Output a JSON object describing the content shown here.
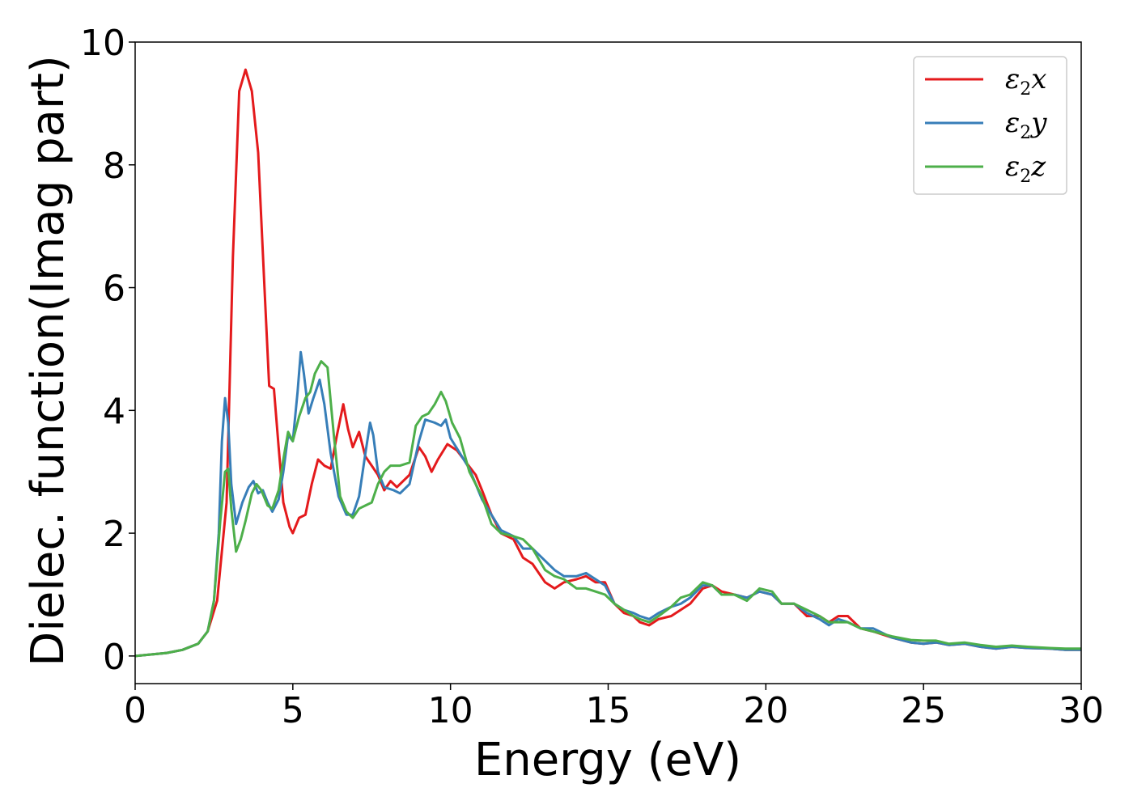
{
  "chart_data": {
    "type": "line",
    "xlabel": "Energy (eV)",
    "ylabel": "Dielec. function(Imag part)",
    "xlim": [
      0,
      30
    ],
    "ylim": [
      -0.45,
      10
    ],
    "xticks": [
      0,
      5,
      10,
      15,
      20,
      25,
      30
    ],
    "yticks": [
      0,
      2,
      4,
      6,
      8,
      10
    ],
    "grid": false,
    "legend_position": "top-right",
    "series": [
      {
        "name": "ε2x",
        "legend": {
          "symbol": "ε",
          "sub": "2",
          "axis": "x"
        },
        "color": "#e41a1c",
        "points": [
          [
            0,
            0
          ],
          [
            1,
            0.05
          ],
          [
            1.5,
            0.1
          ],
          [
            2,
            0.2
          ],
          [
            2.3,
            0.4
          ],
          [
            2.6,
            0.9
          ],
          [
            2.9,
            2.5
          ],
          [
            3.1,
            6.5
          ],
          [
            3.3,
            9.2
          ],
          [
            3.5,
            9.55
          ],
          [
            3.7,
            9.2
          ],
          [
            3.9,
            8.2
          ],
          [
            4.1,
            6.0
          ],
          [
            4.25,
            4.4
          ],
          [
            4.4,
            4.35
          ],
          [
            4.55,
            3.4
          ],
          [
            4.7,
            2.5
          ],
          [
            4.9,
            2.1
          ],
          [
            5.0,
            2.0
          ],
          [
            5.2,
            2.25
          ],
          [
            5.4,
            2.3
          ],
          [
            5.6,
            2.8
          ],
          [
            5.8,
            3.2
          ],
          [
            6.0,
            3.1
          ],
          [
            6.2,
            3.05
          ],
          [
            6.4,
            3.6
          ],
          [
            6.6,
            4.1
          ],
          [
            6.75,
            3.7
          ],
          [
            6.9,
            3.4
          ],
          [
            7.1,
            3.65
          ],
          [
            7.3,
            3.25
          ],
          [
            7.5,
            3.1
          ],
          [
            7.7,
            2.95
          ],
          [
            7.9,
            2.7
          ],
          [
            8.1,
            2.85
          ],
          [
            8.3,
            2.75
          ],
          [
            8.5,
            2.85
          ],
          [
            8.7,
            2.95
          ],
          [
            9.0,
            3.4
          ],
          [
            9.2,
            3.25
          ],
          [
            9.4,
            3.0
          ],
          [
            9.6,
            3.2
          ],
          [
            9.9,
            3.45
          ],
          [
            10.2,
            3.35
          ],
          [
            10.5,
            3.15
          ],
          [
            10.8,
            2.95
          ],
          [
            11.0,
            2.7
          ],
          [
            11.3,
            2.3
          ],
          [
            11.6,
            2.0
          ],
          [
            12.0,
            1.9
          ],
          [
            12.3,
            1.6
          ],
          [
            12.6,
            1.5
          ],
          [
            13.0,
            1.2
          ],
          [
            13.3,
            1.1
          ],
          [
            13.6,
            1.2
          ],
          [
            14.0,
            1.25
          ],
          [
            14.3,
            1.3
          ],
          [
            14.6,
            1.2
          ],
          [
            14.9,
            1.2
          ],
          [
            15.2,
            0.85
          ],
          [
            15.5,
            0.7
          ],
          [
            15.8,
            0.65
          ],
          [
            16.0,
            0.55
          ],
          [
            16.3,
            0.5
          ],
          [
            16.6,
            0.6
          ],
          [
            17.0,
            0.65
          ],
          [
            17.3,
            0.75
          ],
          [
            17.6,
            0.85
          ],
          [
            18.0,
            1.1
          ],
          [
            18.3,
            1.15
          ],
          [
            18.6,
            1.05
          ],
          [
            19.0,
            1.0
          ],
          [
            19.4,
            0.95
          ],
          [
            19.8,
            1.05
          ],
          [
            20.2,
            1.0
          ],
          [
            20.5,
            0.85
          ],
          [
            20.9,
            0.85
          ],
          [
            21.3,
            0.65
          ],
          [
            21.7,
            0.65
          ],
          [
            22.0,
            0.55
          ],
          [
            22.3,
            0.65
          ],
          [
            22.6,
            0.65
          ],
          [
            23.0,
            0.45
          ],
          [
            23.4,
            0.4
          ],
          [
            24.0,
            0.3
          ],
          [
            24.6,
            0.22
          ],
          [
            25.0,
            0.2
          ],
          [
            25.4,
            0.22
          ],
          [
            25.8,
            0.18
          ],
          [
            26.3,
            0.2
          ],
          [
            26.8,
            0.15
          ],
          [
            27.3,
            0.12
          ],
          [
            27.8,
            0.15
          ],
          [
            28.3,
            0.13
          ],
          [
            29.0,
            0.12
          ],
          [
            29.5,
            0.1
          ],
          [
            30.0,
            0.1
          ]
        ]
      },
      {
        "name": "ε2y",
        "legend": {
          "symbol": "ε",
          "sub": "2",
          "axis": "y"
        },
        "color": "#377eb8",
        "points": [
          [
            0,
            0
          ],
          [
            1,
            0.05
          ],
          [
            1.5,
            0.1
          ],
          [
            2,
            0.2
          ],
          [
            2.3,
            0.4
          ],
          [
            2.5,
            0.9
          ],
          [
            2.65,
            2.0
          ],
          [
            2.75,
            3.5
          ],
          [
            2.85,
            4.2
          ],
          [
            2.95,
            3.8
          ],
          [
            3.05,
            2.8
          ],
          [
            3.2,
            2.15
          ],
          [
            3.4,
            2.5
          ],
          [
            3.6,
            2.75
          ],
          [
            3.75,
            2.85
          ],
          [
            3.9,
            2.65
          ],
          [
            4.05,
            2.7
          ],
          [
            4.2,
            2.5
          ],
          [
            4.35,
            2.35
          ],
          [
            4.55,
            2.55
          ],
          [
            4.7,
            3.0
          ],
          [
            4.85,
            3.6
          ],
          [
            5.0,
            3.5
          ],
          [
            5.15,
            4.3
          ],
          [
            5.25,
            4.95
          ],
          [
            5.35,
            4.6
          ],
          [
            5.5,
            3.95
          ],
          [
            5.65,
            4.2
          ],
          [
            5.85,
            4.5
          ],
          [
            6.0,
            4.1
          ],
          [
            6.2,
            3.3
          ],
          [
            6.45,
            2.6
          ],
          [
            6.7,
            2.3
          ],
          [
            6.9,
            2.3
          ],
          [
            7.1,
            2.6
          ],
          [
            7.3,
            3.3
          ],
          [
            7.45,
            3.8
          ],
          [
            7.55,
            3.6
          ],
          [
            7.7,
            3.0
          ],
          [
            7.9,
            2.75
          ],
          [
            8.2,
            2.7
          ],
          [
            8.4,
            2.65
          ],
          [
            8.7,
            2.8
          ],
          [
            9.0,
            3.5
          ],
          [
            9.2,
            3.85
          ],
          [
            9.5,
            3.8
          ],
          [
            9.7,
            3.75
          ],
          [
            9.85,
            3.85
          ],
          [
            10.0,
            3.55
          ],
          [
            10.3,
            3.3
          ],
          [
            10.6,
            3.05
          ],
          [
            11.0,
            2.55
          ],
          [
            11.3,
            2.3
          ],
          [
            11.6,
            2.05
          ],
          [
            12.0,
            1.95
          ],
          [
            12.3,
            1.75
          ],
          [
            12.6,
            1.75
          ],
          [
            13.0,
            1.55
          ],
          [
            13.3,
            1.4
          ],
          [
            13.6,
            1.3
          ],
          [
            14.0,
            1.3
          ],
          [
            14.3,
            1.35
          ],
          [
            14.6,
            1.25
          ],
          [
            14.9,
            1.15
          ],
          [
            15.2,
            0.85
          ],
          [
            15.5,
            0.75
          ],
          [
            15.8,
            0.7
          ],
          [
            16.0,
            0.65
          ],
          [
            16.3,
            0.6
          ],
          [
            16.6,
            0.7
          ],
          [
            17.0,
            0.8
          ],
          [
            17.3,
            0.85
          ],
          [
            17.6,
            0.95
          ],
          [
            18.0,
            1.15
          ],
          [
            18.3,
            1.15
          ],
          [
            18.6,
            1.0
          ],
          [
            19.0,
            1.0
          ],
          [
            19.4,
            0.95
          ],
          [
            19.8,
            1.05
          ],
          [
            20.2,
            1.0
          ],
          [
            20.5,
            0.85
          ],
          [
            20.9,
            0.85
          ],
          [
            21.3,
            0.7
          ],
          [
            21.7,
            0.6
          ],
          [
            22.0,
            0.5
          ],
          [
            22.3,
            0.6
          ],
          [
            22.6,
            0.55
          ],
          [
            23.0,
            0.45
          ],
          [
            23.4,
            0.45
          ],
          [
            24.0,
            0.3
          ],
          [
            24.6,
            0.22
          ],
          [
            25.0,
            0.2
          ],
          [
            25.4,
            0.22
          ],
          [
            25.8,
            0.18
          ],
          [
            26.3,
            0.2
          ],
          [
            26.8,
            0.15
          ],
          [
            27.3,
            0.12
          ],
          [
            27.8,
            0.15
          ],
          [
            28.3,
            0.13
          ],
          [
            29.0,
            0.12
          ],
          [
            29.5,
            0.1
          ],
          [
            30.0,
            0.1
          ]
        ]
      },
      {
        "name": "ε2z",
        "legend": {
          "symbol": "ε",
          "sub": "2",
          "axis": "z"
        },
        "color": "#4daf4a",
        "points": [
          [
            0,
            0
          ],
          [
            1,
            0.05
          ],
          [
            1.5,
            0.1
          ],
          [
            2,
            0.2
          ],
          [
            2.3,
            0.4
          ],
          [
            2.5,
            0.9
          ],
          [
            2.7,
            2.2
          ],
          [
            2.85,
            3.0
          ],
          [
            2.95,
            3.05
          ],
          [
            3.05,
            2.4
          ],
          [
            3.2,
            1.7
          ],
          [
            3.35,
            1.9
          ],
          [
            3.5,
            2.2
          ],
          [
            3.7,
            2.65
          ],
          [
            3.85,
            2.8
          ],
          [
            4.0,
            2.7
          ],
          [
            4.2,
            2.45
          ],
          [
            4.35,
            2.4
          ],
          [
            4.55,
            2.7
          ],
          [
            4.7,
            3.2
          ],
          [
            4.85,
            3.65
          ],
          [
            5.0,
            3.5
          ],
          [
            5.2,
            3.9
          ],
          [
            5.4,
            4.2
          ],
          [
            5.55,
            4.3
          ],
          [
            5.7,
            4.6
          ],
          [
            5.9,
            4.8
          ],
          [
            6.1,
            4.7
          ],
          [
            6.3,
            3.6
          ],
          [
            6.5,
            2.6
          ],
          [
            6.7,
            2.35
          ],
          [
            6.9,
            2.25
          ],
          [
            7.1,
            2.4
          ],
          [
            7.3,
            2.45
          ],
          [
            7.5,
            2.5
          ],
          [
            7.7,
            2.8
          ],
          [
            7.9,
            3.0
          ],
          [
            8.1,
            3.1
          ],
          [
            8.4,
            3.1
          ],
          [
            8.7,
            3.15
          ],
          [
            8.9,
            3.75
          ],
          [
            9.1,
            3.9
          ],
          [
            9.3,
            3.95
          ],
          [
            9.5,
            4.1
          ],
          [
            9.7,
            4.3
          ],
          [
            9.85,
            4.15
          ],
          [
            10.05,
            3.8
          ],
          [
            10.3,
            3.55
          ],
          [
            10.6,
            3.0
          ],
          [
            11.0,
            2.6
          ],
          [
            11.3,
            2.15
          ],
          [
            11.6,
            2.0
          ],
          [
            12.0,
            1.95
          ],
          [
            12.3,
            1.9
          ],
          [
            12.6,
            1.75
          ],
          [
            13.0,
            1.4
          ],
          [
            13.3,
            1.3
          ],
          [
            13.6,
            1.25
          ],
          [
            14.0,
            1.1
          ],
          [
            14.3,
            1.1
          ],
          [
            14.6,
            1.05
          ],
          [
            14.9,
            1.0
          ],
          [
            15.2,
            0.85
          ],
          [
            15.5,
            0.75
          ],
          [
            15.8,
            0.65
          ],
          [
            16.0,
            0.6
          ],
          [
            16.3,
            0.55
          ],
          [
            16.6,
            0.65
          ],
          [
            17.0,
            0.8
          ],
          [
            17.3,
            0.95
          ],
          [
            17.6,
            1.0
          ],
          [
            18.0,
            1.2
          ],
          [
            18.3,
            1.15
          ],
          [
            18.6,
            1.0
          ],
          [
            19.0,
            1.0
          ],
          [
            19.4,
            0.9
          ],
          [
            19.8,
            1.1
          ],
          [
            20.2,
            1.05
          ],
          [
            20.5,
            0.85
          ],
          [
            20.9,
            0.85
          ],
          [
            21.3,
            0.75
          ],
          [
            21.7,
            0.65
          ],
          [
            22.0,
            0.55
          ],
          [
            22.3,
            0.55
          ],
          [
            22.6,
            0.55
          ],
          [
            23.0,
            0.45
          ],
          [
            23.4,
            0.4
          ],
          [
            24.0,
            0.32
          ],
          [
            24.6,
            0.26
          ],
          [
            25.0,
            0.25
          ],
          [
            25.4,
            0.25
          ],
          [
            25.8,
            0.2
          ],
          [
            26.3,
            0.22
          ],
          [
            26.8,
            0.18
          ],
          [
            27.3,
            0.15
          ],
          [
            27.8,
            0.17
          ],
          [
            28.3,
            0.15
          ],
          [
            29.0,
            0.13
          ],
          [
            29.5,
            0.12
          ],
          [
            30.0,
            0.12
          ]
        ]
      }
    ]
  }
}
